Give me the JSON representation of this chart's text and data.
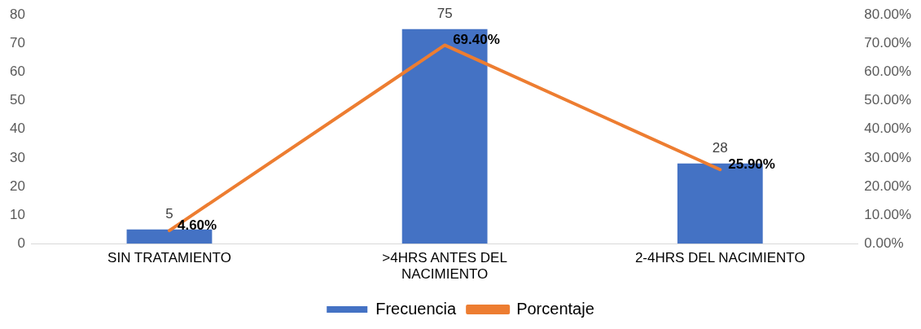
{
  "chart_data": {
    "type": "bar",
    "categories": [
      "SIN TRATAMIENTO",
      ">4HRS ANTES DEL NACIMIENTO",
      "2-4HRS DEL NACIMIENTO"
    ],
    "series": [
      {
        "name": "Frecuencia",
        "color": "#4472c4",
        "values": [
          5,
          75,
          28
        ],
        "value_labels": [
          "5",
          "75",
          "28"
        ]
      },
      {
        "name": "Porcentaje",
        "type": "line",
        "axis": "y2",
        "color": "#ed7d31",
        "values": [
          0.046,
          0.694,
          0.259
        ],
        "value_labels": [
          "4.60%",
          "69.40%",
          "25.90%"
        ]
      }
    ],
    "ylim": [
      0,
      80
    ],
    "yticks": [
      0,
      10,
      20,
      30,
      40,
      50,
      60,
      70,
      80
    ],
    "y2lim": [
      0,
      0.8
    ],
    "y2ticks": [
      {
        "value": 0,
        "label": "0.00%"
      },
      {
        "value": 0.1,
        "label": "10.00%"
      },
      {
        "value": 0.2,
        "label": "20.00%"
      },
      {
        "value": 0.3,
        "label": "30.00%"
      },
      {
        "value": 0.4,
        "label": "40.00%"
      },
      {
        "value": 0.5,
        "label": "50.00%"
      },
      {
        "value": 0.6,
        "label": "60.00%"
      },
      {
        "value": 0.7,
        "label": "70.00%"
      },
      {
        "value": 0.8,
        "label": "80.00%"
      }
    ],
    "grid": false,
    "legend": "bottom",
    "marker": "none",
    "line_style": "solid"
  }
}
